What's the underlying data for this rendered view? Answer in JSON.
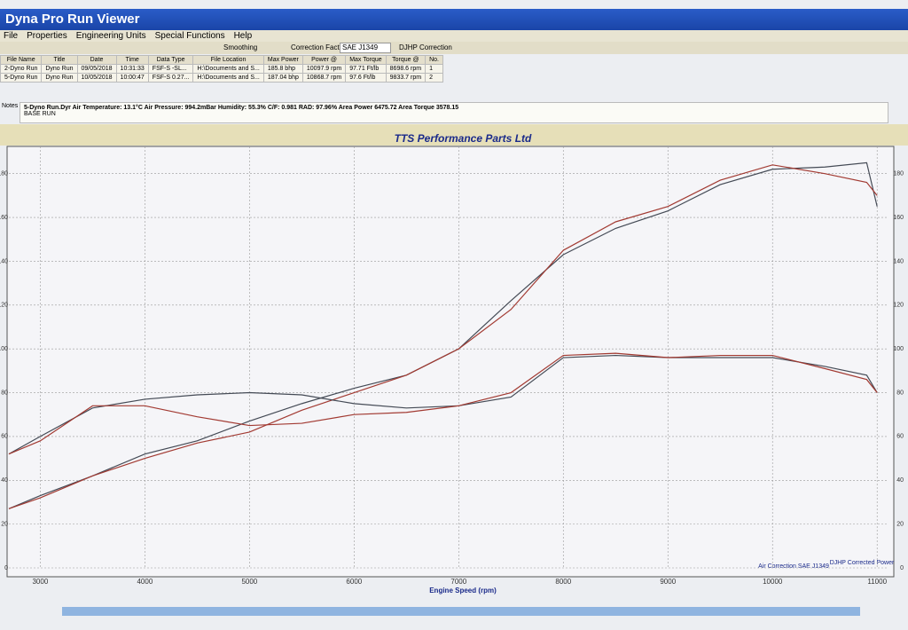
{
  "window": {
    "title": "Dyna Pro Run Viewer"
  },
  "menu": [
    "File",
    "Properties",
    "Engineering Units",
    "Special Functions",
    "Help"
  ],
  "toolbar": {
    "smoothing": "Smoothing",
    "correction_label": "Correction Factor",
    "correction_value": "SAE J1349",
    "djhp": "DJHP Correction"
  },
  "table": {
    "header": [
      "File Name",
      "Title",
      "Date",
      "Time",
      "Data Type",
      "File Location",
      "Max Power",
      "Power @",
      "Max Torque",
      "Torque @",
      "No."
    ],
    "rows": [
      [
        "2-Dyno Run",
        "Dyno Run",
        "09/05/2018",
        "10:31:33",
        "FSF-S -SL...",
        "H:\\Documents and S...",
        "185.8 bhp",
        "10097.9 rpm",
        "97.71 Ft/lb",
        "8698.6 rpm",
        "1"
      ],
      [
        "5-Dyno Run",
        "Dyno Run",
        "10/05/2018",
        "10:00:47",
        "FSF-S 0.27...",
        "H:\\Documents and S...",
        "187.04 bhp",
        "10868.7 rpm",
        "97.6 Ft/lb",
        "9833.7 rpm",
        "2"
      ]
    ]
  },
  "notes": {
    "label": "Notes",
    "line1": "5-Dyno Run.Dyr   Air Temperature: 13.1°C   Air Pressure: 994.2mBar   Humidity: 55.3%   C/F: 0.981   RAD: 97.96%   Area Power 6475.72   Area Torque 3578.15",
    "line2": "BASE RUN"
  },
  "chart_data": {
    "type": "line",
    "title": "TTS Performance Parts Ltd",
    "x_label": "Engine Speed (rpm)",
    "annotations": [
      "Air Correction SAE J1349",
      "DJHP Corrected Power"
    ],
    "x": [
      2700,
      3000,
      3500,
      4000,
      4500,
      5000,
      5500,
      6000,
      6500,
      7000,
      7500,
      8000,
      8500,
      9000,
      9500,
      10000,
      10500,
      10900,
      11000
    ],
    "series": [
      {
        "color": "#444a55",
        "values": [
          27,
          33,
          42,
          52,
          58,
          67,
          75,
          82,
          88,
          100,
          122,
          143,
          155,
          163,
          175,
          182,
          183,
          185,
          165
        ]
      },
      {
        "color": "#a23a32",
        "values": [
          27,
          32,
          42,
          50,
          57,
          62,
          72,
          80,
          88,
          100,
          118,
          145,
          158,
          165,
          177,
          184,
          180,
          176,
          170
        ]
      },
      {
        "color": "#444a55",
        "values": [
          52,
          60,
          73,
          77,
          79,
          80,
          79,
          75,
          73,
          74,
          78,
          96,
          97,
          96,
          96,
          96,
          92,
          88,
          80
        ]
      },
      {
        "color": "#a23a32",
        "values": [
          52,
          58,
          74,
          74,
          69,
          65,
          66,
          70,
          71,
          74,
          80,
          97,
          98,
          96,
          97,
          97,
          91,
          86,
          80
        ]
      }
    ],
    "xlim": [
      2700,
      11100
    ],
    "ylim": [
      0,
      190
    ],
    "xticks": [
      3000,
      4000,
      5000,
      6000,
      7000,
      8000,
      9000,
      10000,
      11000
    ],
    "yticks": [
      0,
      20,
      40,
      60,
      80,
      100,
      120,
      140,
      160,
      180
    ],
    "grid": true
  }
}
